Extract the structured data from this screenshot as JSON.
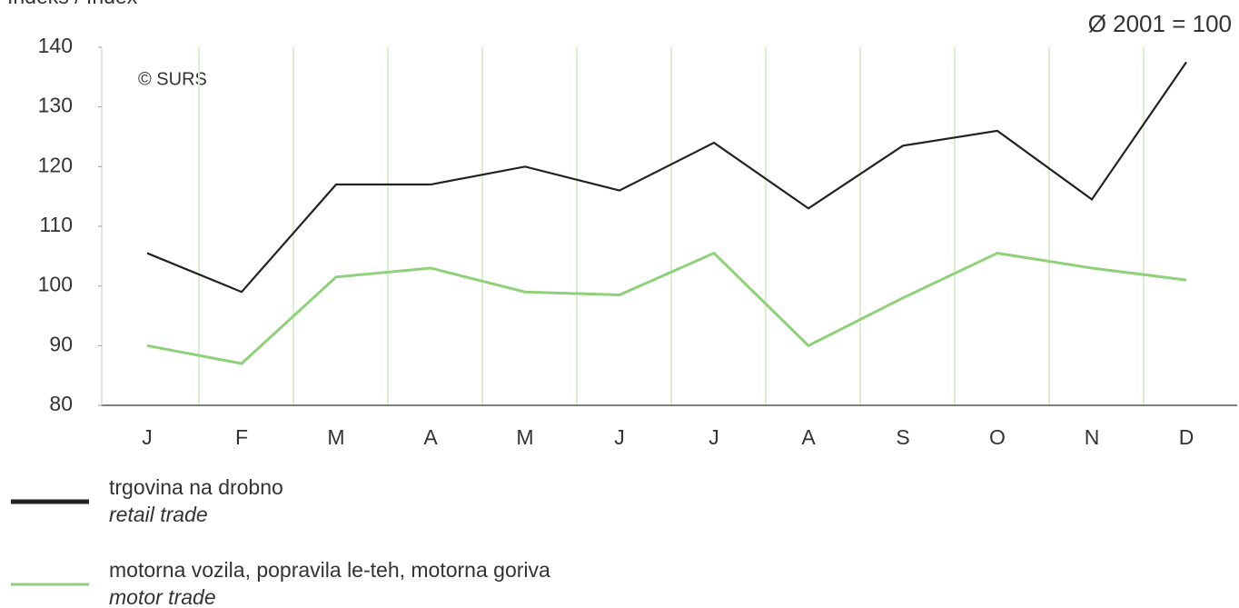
{
  "chart_data": {
    "type": "line",
    "title": "Indeks / Index",
    "subtitle": "Ø 2001 = 100",
    "annotation": "© SURS",
    "categories": [
      "J",
      "F",
      "M",
      "A",
      "M",
      "J",
      "J",
      "A",
      "S",
      "O",
      "N",
      "D"
    ],
    "series": [
      {
        "name": "trgovina na drobno",
        "name_en": "retail trade",
        "color": "#222222",
        "values": [
          105.5,
          99,
          117,
          117,
          120,
          116,
          124,
          113,
          123.5,
          126,
          114.5,
          137.5
        ]
      },
      {
        "name": "motorna vozila, popravila le-teh, motorna goriva",
        "name_en": "motor trade",
        "color": "#8fd17a",
        "values": [
          90,
          87,
          101.5,
          103,
          99,
          98.5,
          105.5,
          90,
          98,
          105.5,
          103,
          101
        ]
      }
    ],
    "ylim": [
      80,
      140
    ],
    "yticks": [
      80,
      90,
      100,
      110,
      120,
      130,
      140
    ],
    "grid": true
  }
}
